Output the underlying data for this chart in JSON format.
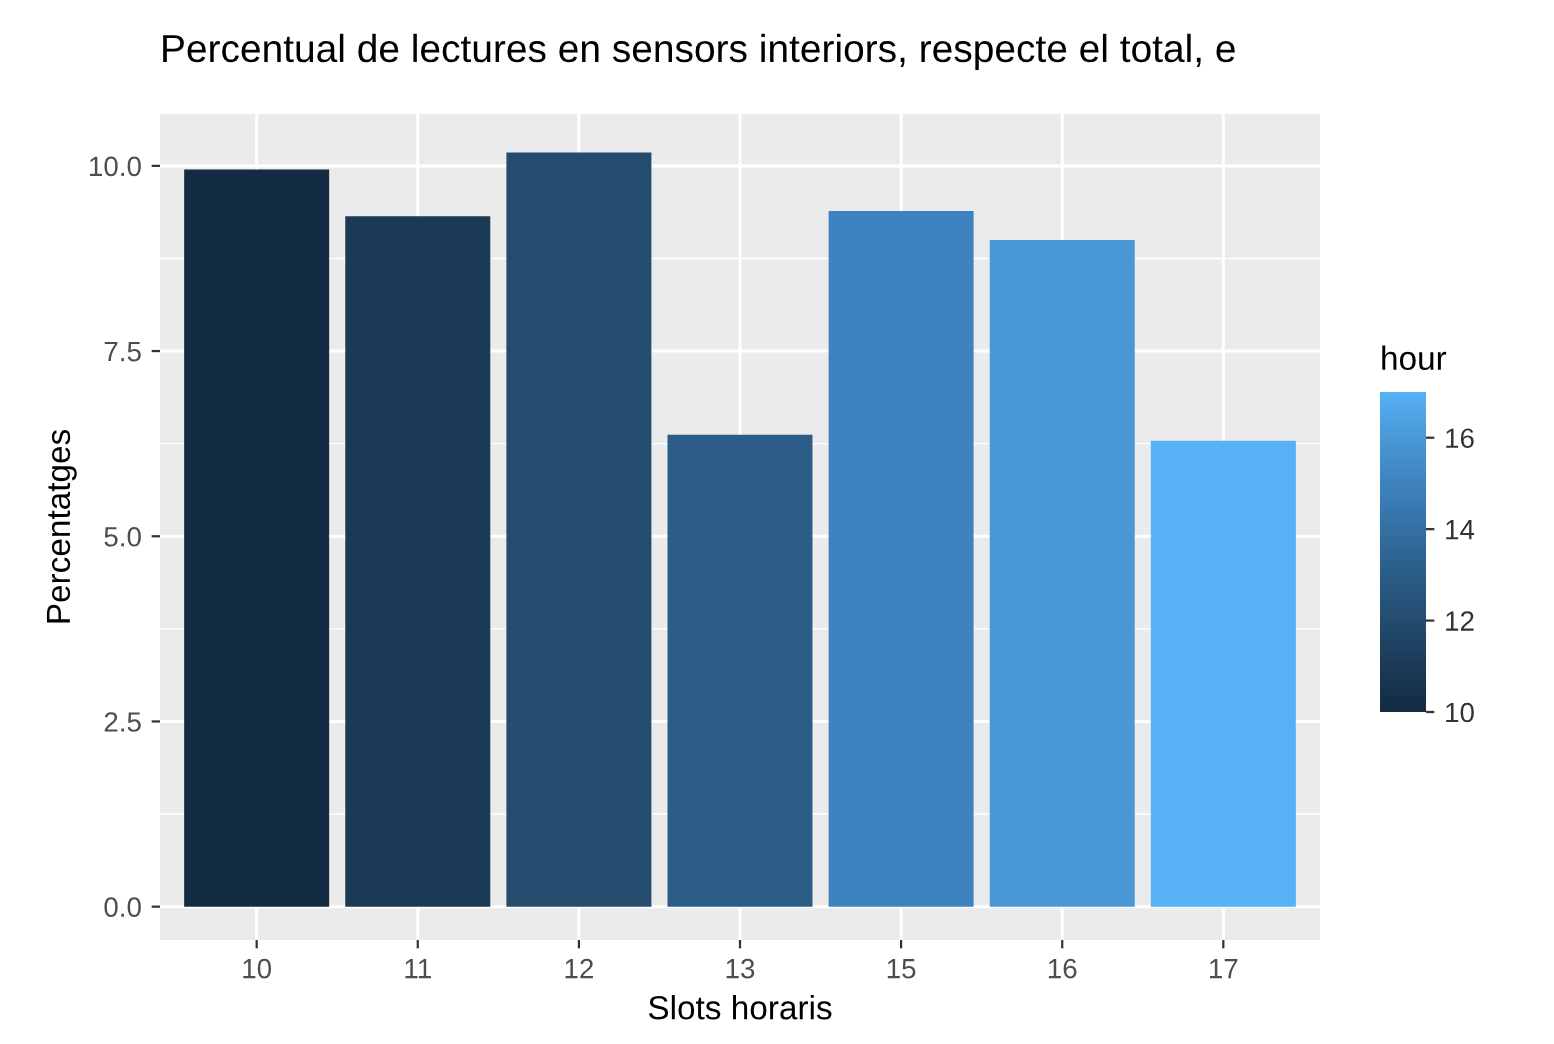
{
  "chart_data": {
    "type": "bar",
    "title": "Percentual de lectures en sensors interiors, respecte el total, e",
    "xlabel": "Slots horaris",
    "ylabel": "Percentatges",
    "clabel": "hour",
    "categories": [
      "10",
      "11",
      "12",
      "13",
      "15",
      "16",
      "17"
    ],
    "values": [
      9.95,
      9.32,
      10.18,
      6.37,
      9.39,
      9.0,
      6.29
    ],
    "cvalues": [
      10,
      11,
      12,
      13,
      15,
      16,
      17
    ],
    "colors": [
      "#132b43",
      "#1a3a57",
      "#244c6f",
      "#2b5d87",
      "#3e83bf",
      "#4a98d6",
      "#56b1f7"
    ],
    "clim": [
      10,
      17
    ],
    "cticks": [
      10,
      12,
      14,
      16
    ],
    "ylim": [
      -0.45,
      10.7
    ],
    "yticks": [
      {
        "value": 0,
        "label": "0.0"
      },
      {
        "value": 2.5,
        "label": "2.5"
      },
      {
        "value": 5,
        "label": "5.0"
      },
      {
        "value": 7.5,
        "label": "7.5"
      },
      {
        "value": 10,
        "label": "10.0"
      }
    ],
    "grid": true
  }
}
